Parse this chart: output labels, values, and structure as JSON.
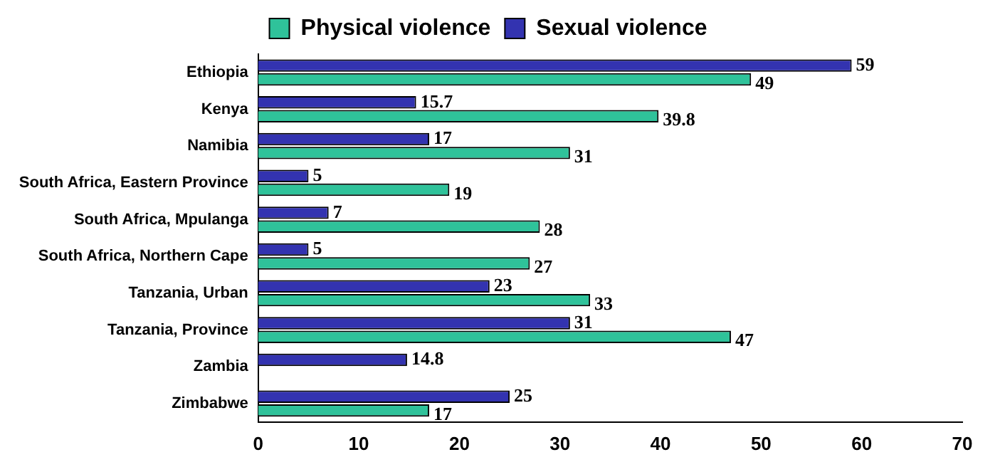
{
  "chart_data": {
    "type": "bar",
    "orientation": "horizontal",
    "categories": [
      "Ethiopia",
      "Kenya",
      "Namibia",
      "South Africa, Eastern Province",
      "South Africa, Mpulanga",
      "South Africa, Northern Cape",
      "Tanzania, Urban",
      "Tanzania, Province",
      "Zambia",
      "Zimbabwe"
    ],
    "series": [
      {
        "name": "Physical violence",
        "color": "#2fc29a",
        "values": [
          49,
          39.8,
          31,
          19,
          28,
          27,
          33,
          47,
          null,
          17
        ]
      },
      {
        "name": "Sexual violence",
        "color": "#3333b0",
        "values": [
          59,
          15.7,
          17,
          5,
          7,
          5,
          23,
          31,
          14.8,
          25
        ]
      }
    ],
    "xlim": [
      0,
      70
    ],
    "xticks": [
      0,
      10,
      20,
      30,
      40,
      50,
      60,
      70
    ],
    "grid": false,
    "legend": "top",
    "data_labels": true
  }
}
